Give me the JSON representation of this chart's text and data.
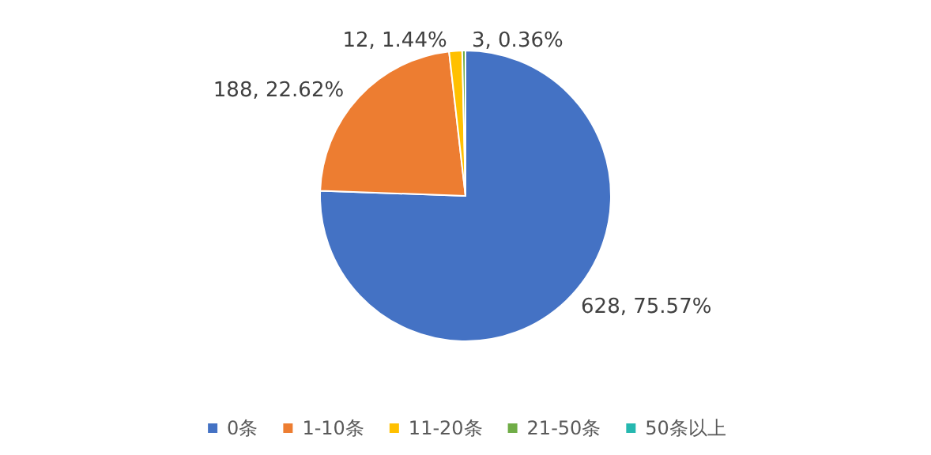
{
  "chart_data": {
    "type": "pie",
    "categories": [
      "0条",
      "1-10条",
      "11-20条",
      "21-50条",
      "50条以上"
    ],
    "values": [
      628,
      188,
      12,
      3,
      0
    ],
    "value_labels": [
      "628, 75.57%",
      "188, 22.62%",
      "12, 1.44%",
      "3, 0.36%",
      null
    ],
    "colors": [
      "#4472c4",
      "#ed7d31",
      "#ffc000",
      "#70ad47",
      "#26b8b0"
    ],
    "legend": "bottom"
  }
}
